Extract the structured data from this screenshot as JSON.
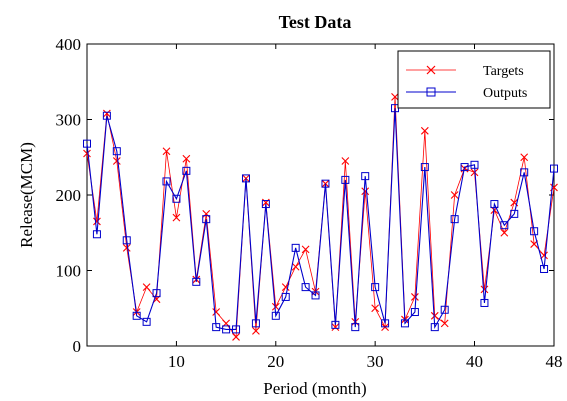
{
  "chart_data": {
    "type": "line",
    "title": "Test Data",
    "xlabel": "Period (month)",
    "ylabel": "Release(MCM)",
    "xlim": [
      1,
      48
    ],
    "ylim": [
      0,
      400
    ],
    "xticks": [
      10,
      20,
      30,
      40,
      48
    ],
    "yticks": [
      0,
      100,
      200,
      300,
      400
    ],
    "legend_position": "top-right",
    "x": [
      1,
      2,
      3,
      4,
      5,
      6,
      7,
      8,
      9,
      10,
      11,
      12,
      13,
      14,
      15,
      16,
      17,
      18,
      19,
      20,
      21,
      22,
      23,
      24,
      25,
      26,
      27,
      28,
      29,
      30,
      31,
      32,
      33,
      34,
      35,
      36,
      37,
      38,
      39,
      40,
      41,
      42,
      43,
      44,
      45,
      46,
      47,
      48
    ],
    "series": [
      {
        "name": "Targets",
        "color": "#ff0000",
        "marker": "x",
        "values": [
          255,
          165,
          308,
          245,
          130,
          45,
          78,
          62,
          258,
          170,
          248,
          88,
          175,
          45,
          30,
          12,
          222,
          20,
          190,
          52,
          78,
          105,
          128,
          72,
          215,
          25,
          245,
          32,
          205,
          50,
          25,
          330,
          35,
          65,
          285,
          40,
          30,
          200,
          235,
          230,
          75,
          180,
          150,
          190,
          250,
          135,
          120,
          210
        ]
      },
      {
        "name": "Outputs",
        "color": "#0000cc",
        "marker": "square",
        "values": [
          268,
          148,
          305,
          258,
          140,
          40,
          32,
          70,
          218,
          195,
          232,
          85,
          168,
          25,
          22,
          22,
          222,
          30,
          188,
          40,
          65,
          130,
          78,
          67,
          215,
          28,
          220,
          25,
          225,
          78,
          30,
          315,
          30,
          45,
          237,
          25,
          48,
          168,
          237,
          240,
          57,
          188,
          160,
          175,
          230,
          152,
          102,
          235
        ]
      }
    ]
  }
}
